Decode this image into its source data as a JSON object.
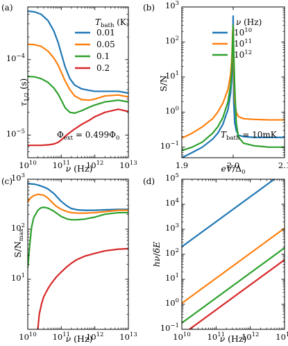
{
  "colors": {
    "blue": "#1f77b4",
    "orange": "#ff7f0e",
    "green": "#2ca02c",
    "red": "#d62728"
  },
  "chart_data": [
    {
      "panel": "(a)",
      "type": "line",
      "xscale": "log",
      "yscale": "log",
      "xlim": [
        10000000000.0,
        10000000000000.0
      ],
      "ylim": [
        5e-06,
        0.0005
      ],
      "xlabel": "ν (Hz)",
      "ylabel": "τ1/2 (s)",
      "xticks": [
        {
          "v": 10000000000.0,
          "b": "10",
          "e": "10"
        },
        {
          "v": 100000000000.0,
          "b": "10",
          "e": "11"
        },
        {
          "v": 1000000000000.0,
          "b": "10",
          "e": "12"
        },
        {
          "v": 10000000000000.0,
          "b": "10",
          "e": "13"
        }
      ],
      "yticks": [
        {
          "v": 1e-05,
          "b": "10",
          "e": "−5"
        },
        {
          "v": 0.0001,
          "b": "10",
          "e": "−4"
        }
      ],
      "legend_title": "Tbath (K)",
      "legend_position": "upper right",
      "annotation": "Φext = 0.499Φ0",
      "series": [
        {
          "name": "0.01",
          "color": "blue",
          "x": [
            10000000000.0,
            16000000000.0,
            25000000000.0,
            40000000000.0,
            60000000000.0,
            80000000000.0,
            100000000000.0,
            130000000000.0,
            180000000000.0,
            250000000000.0,
            400000000000.0,
            700000000000.0,
            1000000000000.0,
            2000000000000.0,
            5000000000000.0,
            10000000000000.0
          ],
          "y": [
            0.00044,
            0.00043,
            0.0004,
            0.00033,
            0.00024,
            0.00017,
            0.00012,
            8e-05,
            5.6e-05,
            4.6e-05,
            4.1e-05,
            3.9e-05,
            3.8e-05,
            3.8e-05,
            3.8e-05,
            3.6e-05
          ]
        },
        {
          "name": "0.05",
          "color": "orange",
          "x": [
            10000000000.0,
            16000000000.0,
            25000000000.0,
            40000000000.0,
            60000000000.0,
            80000000000.0,
            100000000000.0,
            130000000000.0,
            180000000000.0,
            250000000000.0,
            400000000000.0,
            700000000000.0,
            1000000000000.0,
            2000000000000.0,
            5000000000000.0,
            10000000000000.0
          ],
          "y": [
            0.00016,
            0.000158,
            0.00015,
            0.00013,
            0.000105,
            8.5e-05,
            6.8e-05,
            5.2e-05,
            4e-05,
            3.3e-05,
            2.95e-05,
            2.9e-05,
            3e-05,
            3.3e-05,
            3.4e-05,
            3.2e-05
          ]
        },
        {
          "name": "0.1",
          "color": "green",
          "x": [
            10000000000.0,
            16000000000.0,
            25000000000.0,
            40000000000.0,
            60000000000.0,
            80000000000.0,
            100000000000.0,
            130000000000.0,
            180000000000.0,
            250000000000.0,
            400000000000.0,
            700000000000.0,
            1000000000000.0,
            2000000000000.0,
            5000000000000.0,
            10000000000000.0
          ],
          "y": [
            6e-05,
            5.9e-05,
            5.6e-05,
            5e-05,
            4.2e-05,
            3.5e-05,
            2.9e-05,
            2.3e-05,
            2e-05,
            1.95e-05,
            2.1e-05,
            2.35e-05,
            2.5e-05,
            2.75e-05,
            2.9e-05,
            2.75e-05
          ]
        },
        {
          "name": "0.2",
          "color": "red",
          "x": [
            10000000000.0,
            16000000000.0,
            25000000000.0,
            40000000000.0,
            60000000000.0,
            80000000000.0,
            100000000000.0,
            130000000000.0,
            180000000000.0,
            250000000000.0,
            400000000000.0,
            700000000000.0,
            1000000000000.0,
            2000000000000.0,
            5000000000000.0,
            10000000000000.0
          ],
          "y": [
            7.3e-06,
            7.3e-06,
            7.3e-06,
            7.4e-06,
            7.6e-06,
            8e-06,
            8.6e-06,
            9.6e-06,
            1.08e-05,
            1.2e-05,
            1.38e-05,
            1.58e-05,
            1.75e-05,
            2e-05,
            2.2e-05,
            2.05e-05
          ]
        }
      ]
    },
    {
      "panel": "(b)",
      "type": "line",
      "xscale": "linear",
      "yscale": "log",
      "xlim": [
        1.9,
        2.1
      ],
      "ylim": [
        0.05,
        1000
      ],
      "xlabel": "eV/Δ0",
      "ylabel": "S/N",
      "xticks": [
        {
          "v": 1.9,
          "t": "1.9"
        },
        {
          "v": 2.0,
          "t": "2.0"
        },
        {
          "v": 2.1,
          "t": "2.1"
        }
      ],
      "yticks": [
        {
          "v": 0.1,
          "b": "10",
          "e": "−1"
        },
        {
          "v": 1,
          "b": "10",
          "e": "0"
        },
        {
          "v": 10,
          "b": "10",
          "e": "1"
        },
        {
          "v": 100,
          "b": "10",
          "e": "2"
        },
        {
          "v": 1000,
          "b": "10",
          "e": "3"
        }
      ],
      "legend_title": "ν (Hz)",
      "legend_position": "upper right",
      "annotation": "Tbath = 10mK",
      "series": [
        {
          "name": "10^10",
          "color": "blue",
          "x": [
            1.9,
            1.92,
            1.94,
            1.96,
            1.97,
            1.98,
            1.99,
            1.995,
            1.997,
            1.998,
            1.999,
            2.0,
            2.001,
            2.003,
            2.006,
            2.01,
            2.02,
            2.04,
            2.07,
            2.1
          ],
          "y": [
            0.05,
            0.07,
            0.1,
            0.17,
            0.25,
            0.45,
            1.2,
            3.5,
            8,
            18,
            60,
            550,
            2,
            0.5,
            0.3,
            0.22,
            0.2,
            0.19,
            0.19,
            0.19
          ]
        },
        {
          "name": "10^11",
          "color": "orange",
          "x": [
            1.9,
            1.92,
            1.94,
            1.96,
            1.97,
            1.98,
            1.99,
            1.995,
            1.997,
            1.998,
            1.999,
            2.0,
            2.001,
            2.003,
            2.006,
            2.01,
            2.02,
            2.04,
            2.07,
            2.1
          ],
          "y": [
            0.18,
            0.25,
            0.38,
            0.65,
            1,
            1.8,
            4.5,
            12,
            28,
            60,
            200,
            280,
            20,
            2,
            1,
            0.75,
            0.65,
            0.62,
            0.6,
            0.6
          ]
        },
        {
          "name": "10^12",
          "color": "green",
          "x": [
            1.9,
            1.92,
            1.94,
            1.96,
            1.97,
            1.98,
            1.99,
            1.995,
            1.997,
            1.998,
            1.999,
            2.0,
            2.001,
            2.003,
            2.006,
            2.01,
            2.02,
            2.04,
            2.07,
            2.1
          ],
          "y": [
            0.08,
            0.1,
            0.14,
            0.25,
            0.38,
            0.7,
            2,
            6,
            14,
            35,
            120,
            300,
            60,
            5,
            0.5,
            0.2,
            0.13,
            0.11,
            0.1,
            0.1
          ]
        }
      ]
    },
    {
      "panel": "(c)",
      "type": "line",
      "xscale": "log",
      "yscale": "log",
      "xlim": [
        10000000000.0,
        10000000000000.0
      ],
      "ylim": [
        1,
        1000
      ],
      "xlabel": "ν (Hz)",
      "ylabel": "S/Nmax",
      "xticks": [
        {
          "v": 10000000000.0,
          "b": "10",
          "e": "10"
        },
        {
          "v": 100000000000.0,
          "b": "10",
          "e": "11"
        },
        {
          "v": 1000000000000.0,
          "b": "10",
          "e": "12"
        },
        {
          "v": 10000000000000.0,
          "b": "10",
          "e": "13"
        }
      ],
      "yticks": [
        {
          "v": 10,
          "b": "10",
          "e": "1"
        },
        {
          "v": 100,
          "b": "10",
          "e": "2"
        },
        {
          "v": 1000,
          "b": "10",
          "e": "3"
        }
      ],
      "series": [
        {
          "name": "0.01",
          "color": "blue",
          "x": [
            10000000000.0,
            15000000000.0,
            20000000000.0,
            30000000000.0,
            40000000000.0,
            60000000000.0,
            80000000000.0,
            100000000000.0,
            150000000000.0,
            200000000000.0,
            300000000000.0,
            500000000000.0,
            1000000000000.0,
            2000000000000.0,
            5000000000000.0,
            10000000000000.0
          ],
          "y": [
            820,
            800,
            770,
            700,
            640,
            520,
            420,
            360,
            290,
            260,
            245,
            240,
            240,
            245,
            250,
            250
          ]
        },
        {
          "name": "0.05",
          "color": "orange",
          "x": [
            10000000000.0,
            12000000000.0,
            15000000000.0,
            20000000000.0,
            30000000000.0,
            40000000000.0,
            50000000000.0,
            70000000000.0,
            100000000000.0,
            150000000000.0,
            200000000000.0,
            300000000000.0,
            500000000000.0,
            1000000000000.0,
            2000000000000.0,
            5000000000000.0,
            10000000000000.0
          ],
          "y": [
            350,
            420,
            470,
            500,
            480,
            420,
            360,
            290,
            250,
            225,
            215,
            210,
            210,
            215,
            225,
            240,
            240
          ]
        },
        {
          "name": "0.1",
          "color": "green",
          "x": [
            10000000000.0,
            11500000000.0,
            13000000000.0,
            15000000000.0,
            20000000000.0,
            25000000000.0,
            30000000000.0,
            40000000000.0,
            60000000000.0,
            80000000000.0,
            100000000000.0,
            150000000000.0,
            200000000000.0,
            300000000000.0,
            500000000000.0,
            1000000000000.0,
            2000000000000.0,
            5000000000000.0,
            10000000000000.0
          ],
          "y": [
            17,
            50,
            110,
            170,
            240,
            270,
            275,
            265,
            230,
            200,
            180,
            160,
            155,
            155,
            160,
            175,
            200,
            215,
            215
          ]
        },
        {
          "name": "0.2",
          "color": "red",
          "x": [
            20000000000.0,
            22000000000.0,
            26000000000.0,
            30000000000.0,
            40000000000.0,
            50000000000.0,
            70000000000.0,
            100000000000.0,
            150000000000.0,
            200000000000.0,
            300000000000.0,
            500000000000.0,
            1000000000000.0,
            2000000000000.0,
            5000000000000.0,
            10000000000000.0
          ],
          "y": [
            1,
            2,
            3.3,
            4.5,
            6.5,
            8.2,
            11,
            14,
            18,
            21,
            25,
            29,
            33,
            37,
            40,
            41
          ]
        }
      ]
    },
    {
      "panel": "(d)",
      "type": "line",
      "xscale": "log",
      "yscale": "log",
      "xlim": [
        10000000000.0,
        10000000000000.0
      ],
      "ylim": [
        0.1,
        100000
      ],
      "xlabel": "ν (Hz)",
      "ylabel": "hν/δE",
      "xticks": [
        {
          "v": 10000000000.0,
          "b": "10",
          "e": "10"
        },
        {
          "v": 100000000000.0,
          "b": "10",
          "e": "11"
        },
        {
          "v": 1000000000000.0,
          "b": "10",
          "e": "12"
        },
        {
          "v": 10000000000000.0,
          "b": "10",
          "e": "13"
        }
      ],
      "yticks": [
        {
          "v": 0.1,
          "b": "10",
          "e": "−1"
        },
        {
          "v": 1,
          "b": "10",
          "e": "0"
        },
        {
          "v": 10,
          "b": "10",
          "e": "1"
        },
        {
          "v": 100,
          "b": "10",
          "e": "2"
        },
        {
          "v": 1000,
          "b": "10",
          "e": "3"
        },
        {
          "v": 10000,
          "b": "10",
          "e": "4"
        },
        {
          "v": 100000,
          "b": "10",
          "e": "5"
        }
      ],
      "series": [
        {
          "name": "0.01",
          "color": "blue",
          "x": [
            10000000000.0,
            10000000000000.0
          ],
          "y": [
            200,
            200000
          ]
        },
        {
          "name": "0.05",
          "color": "orange",
          "x": [
            10000000000.0,
            10000000000000.0
          ],
          "y": [
            1.1,
            1100
          ]
        },
        {
          "name": "0.1",
          "color": "green",
          "x": [
            10000000000.0,
            10000000000000.0
          ],
          "y": [
            0.18,
            180
          ]
        },
        {
          "name": "0.2",
          "color": "red",
          "x": [
            10000000000.0,
            10000000000000.0
          ],
          "y": [
            0.06,
            60
          ]
        }
      ]
    }
  ]
}
